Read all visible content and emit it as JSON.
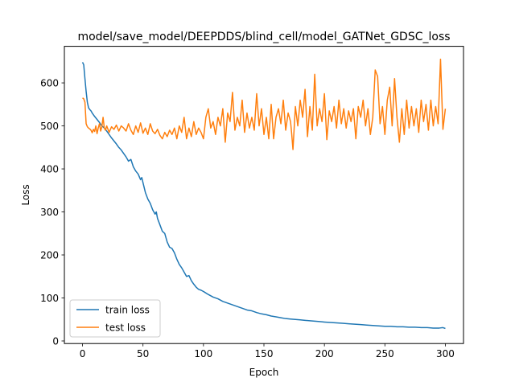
{
  "chart_data": {
    "type": "line",
    "title": "model/save_model/DEEPDDS/blind_cell/model_GATNet_GDSC_loss",
    "xlabel": "Epoch",
    "ylabel": "Loss",
    "xlim": [
      -15,
      315
    ],
    "ylim": [
      -6,
      685
    ],
    "xticks": [
      0,
      50,
      100,
      150,
      200,
      250,
      300
    ],
    "yticks": [
      0,
      100,
      200,
      300,
      400,
      500,
      600
    ],
    "grid": false,
    "legend_position": "lower-left",
    "series": [
      {
        "name": "train loss",
        "color": "#1f77b4",
        "points": [
          [
            0,
            648
          ],
          [
            1,
            642
          ],
          [
            2,
            610
          ],
          [
            3,
            580
          ],
          [
            4,
            555
          ],
          [
            5,
            542
          ],
          [
            6,
            538
          ],
          [
            7,
            535
          ],
          [
            8,
            530
          ],
          [
            9,
            526
          ],
          [
            10,
            522
          ],
          [
            12,
            515
          ],
          [
            14,
            508
          ],
          [
            16,
            500
          ],
          [
            18,
            495
          ],
          [
            20,
            488
          ],
          [
            22,
            480
          ],
          [
            24,
            472
          ],
          [
            26,
            465
          ],
          [
            28,
            458
          ],
          [
            30,
            450
          ],
          [
            32,
            444
          ],
          [
            34,
            436
          ],
          [
            36,
            428
          ],
          [
            38,
            418
          ],
          [
            40,
            422
          ],
          [
            42,
            405
          ],
          [
            44,
            395
          ],
          [
            46,
            388
          ],
          [
            48,
            375
          ],
          [
            49,
            380
          ],
          [
            50,
            368
          ],
          [
            52,
            345
          ],
          [
            54,
            330
          ],
          [
            56,
            320
          ],
          [
            58,
            305
          ],
          [
            60,
            295
          ],
          [
            61,
            300
          ],
          [
            62,
            285
          ],
          [
            64,
            270
          ],
          [
            66,
            255
          ],
          [
            68,
            250
          ],
          [
            70,
            230
          ],
          [
            72,
            218
          ],
          [
            74,
            215
          ],
          [
            76,
            205
          ],
          [
            78,
            190
          ],
          [
            80,
            178
          ],
          [
            82,
            170
          ],
          [
            84,
            160
          ],
          [
            86,
            150
          ],
          [
            88,
            152
          ],
          [
            90,
            140
          ],
          [
            92,
            132
          ],
          [
            94,
            125
          ],
          [
            96,
            120
          ],
          [
            98,
            118
          ],
          [
            100,
            115
          ],
          [
            104,
            108
          ],
          [
            108,
            102
          ],
          [
            112,
            98
          ],
          [
            116,
            92
          ],
          [
            120,
            88
          ],
          [
            124,
            84
          ],
          [
            128,
            80
          ],
          [
            132,
            76
          ],
          [
            136,
            72
          ],
          [
            140,
            70
          ],
          [
            144,
            66
          ],
          [
            148,
            63
          ],
          [
            152,
            61
          ],
          [
            156,
            58
          ],
          [
            160,
            56
          ],
          [
            164,
            54
          ],
          [
            168,
            52
          ],
          [
            172,
            51
          ],
          [
            176,
            50
          ],
          [
            180,
            49
          ],
          [
            184,
            48
          ],
          [
            188,
            47
          ],
          [
            192,
            46
          ],
          [
            196,
            45
          ],
          [
            200,
            44
          ],
          [
            205,
            43
          ],
          [
            210,
            42
          ],
          [
            215,
            41
          ],
          [
            220,
            40
          ],
          [
            225,
            39
          ],
          [
            230,
            38
          ],
          [
            235,
            37
          ],
          [
            240,
            36
          ],
          [
            245,
            35
          ],
          [
            250,
            34
          ],
          [
            255,
            34
          ],
          [
            260,
            33
          ],
          [
            265,
            33
          ],
          [
            270,
            32
          ],
          [
            275,
            32
          ],
          [
            280,
            31
          ],
          [
            285,
            31
          ],
          [
            290,
            30
          ],
          [
            295,
            30
          ],
          [
            298,
            31
          ],
          [
            300,
            29
          ]
        ]
      },
      {
        "name": "test loss",
        "color": "#ff7f0e",
        "points": [
          [
            0,
            565
          ],
          [
            1,
            563
          ],
          [
            2,
            555
          ],
          [
            3,
            505
          ],
          [
            4,
            498
          ],
          [
            5,
            495
          ],
          [
            6,
            493
          ],
          [
            7,
            490
          ],
          [
            8,
            484
          ],
          [
            9,
            492
          ],
          [
            10,
            487
          ],
          [
            11,
            500
          ],
          [
            12,
            482
          ],
          [
            13,
            495
          ],
          [
            14,
            505
          ],
          [
            15,
            488
          ],
          [
            16,
            498
          ],
          [
            17,
            520
          ],
          [
            18,
            495
          ],
          [
            19,
            490
          ],
          [
            20,
            500
          ],
          [
            22,
            485
          ],
          [
            24,
            498
          ],
          [
            26,
            492
          ],
          [
            28,
            502
          ],
          [
            30,
            488
          ],
          [
            32,
            500
          ],
          [
            34,
            495
          ],
          [
            36,
            488
          ],
          [
            38,
            505
          ],
          [
            40,
            490
          ],
          [
            42,
            480
          ],
          [
            44,
            500
          ],
          [
            46,
            485
          ],
          [
            48,
            507
          ],
          [
            50,
            483
          ],
          [
            52,
            495
          ],
          [
            54,
            480
          ],
          [
            56,
            505
          ],
          [
            58,
            488
          ],
          [
            60,
            482
          ],
          [
            62,
            492
          ],
          [
            64,
            478
          ],
          [
            66,
            470
          ],
          [
            68,
            485
          ],
          [
            70,
            475
          ],
          [
            72,
            490
          ],
          [
            74,
            480
          ],
          [
            76,
            495
          ],
          [
            78,
            470
          ],
          [
            80,
            500
          ],
          [
            82,
            485
          ],
          [
            84,
            520
          ],
          [
            86,
            470
          ],
          [
            88,
            495
          ],
          [
            90,
            475
          ],
          [
            92,
            510
          ],
          [
            94,
            480
          ],
          [
            96,
            495
          ],
          [
            98,
            485
          ],
          [
            100,
            470
          ],
          [
            102,
            520
          ],
          [
            104,
            540
          ],
          [
            106,
            495
          ],
          [
            108,
            510
          ],
          [
            110,
            480
          ],
          [
            112,
            520
          ],
          [
            114,
            500
          ],
          [
            116,
            540
          ],
          [
            118,
            462
          ],
          [
            120,
            530
          ],
          [
            122,
            510
          ],
          [
            124,
            578
          ],
          [
            126,
            490
          ],
          [
            128,
            520
          ],
          [
            130,
            500
          ],
          [
            132,
            560
          ],
          [
            134,
            485
          ],
          [
            136,
            530
          ],
          [
            138,
            495
          ],
          [
            140,
            520
          ],
          [
            142,
            490
          ],
          [
            144,
            575
          ],
          [
            146,
            500
          ],
          [
            148,
            540
          ],
          [
            150,
            480
          ],
          [
            152,
            520
          ],
          [
            154,
            470
          ],
          [
            156,
            550
          ],
          [
            158,
            470
          ],
          [
            160,
            520
          ],
          [
            162,
            540
          ],
          [
            164,
            505
          ],
          [
            166,
            560
          ],
          [
            168,
            490
          ],
          [
            170,
            530
          ],
          [
            172,
            510
          ],
          [
            173,
            480
          ],
          [
            174,
            445
          ],
          [
            176,
            545
          ],
          [
            178,
            500
          ],
          [
            180,
            560
          ],
          [
            182,
            520
          ],
          [
            184,
            585
          ],
          [
            186,
            475
          ],
          [
            188,
            545
          ],
          [
            190,
            490
          ],
          [
            192,
            620
          ],
          [
            194,
            500
          ],
          [
            196,
            540
          ],
          [
            198,
            510
          ],
          [
            200,
            575
          ],
          [
            202,
            468
          ],
          [
            204,
            535
          ],
          [
            206,
            510
          ],
          [
            208,
            545
          ],
          [
            210,
            495
          ],
          [
            212,
            560
          ],
          [
            214,
            505
          ],
          [
            216,
            540
          ],
          [
            218,
            495
          ],
          [
            220,
            535
          ],
          [
            222,
            510
          ],
          [
            224,
            540
          ],
          [
            226,
            470
          ],
          [
            228,
            545
          ],
          [
            230,
            520
          ],
          [
            232,
            560
          ],
          [
            234,
            500
          ],
          [
            236,
            540
          ],
          [
            238,
            480
          ],
          [
            240,
            520
          ],
          [
            242,
            630
          ],
          [
            244,
            615
          ],
          [
            246,
            505
          ],
          [
            248,
            545
          ],
          [
            250,
            480
          ],
          [
            252,
            560
          ],
          [
            254,
            590
          ],
          [
            256,
            500
          ],
          [
            258,
            610
          ],
          [
            260,
            520
          ],
          [
            262,
            462
          ],
          [
            264,
            540
          ],
          [
            266,
            480
          ],
          [
            268,
            560
          ],
          [
            270,
            495
          ],
          [
            272,
            545
          ],
          [
            274,
            500
          ],
          [
            276,
            540
          ],
          [
            278,
            485
          ],
          [
            280,
            560
          ],
          [
            282,
            510
          ],
          [
            284,
            550
          ],
          [
            286,
            490
          ],
          [
            288,
            560
          ],
          [
            290,
            500
          ],
          [
            292,
            545
          ],
          [
            294,
            505
          ],
          [
            296,
            655
          ],
          [
            298,
            492
          ],
          [
            300,
            540
          ]
        ]
      }
    ]
  }
}
